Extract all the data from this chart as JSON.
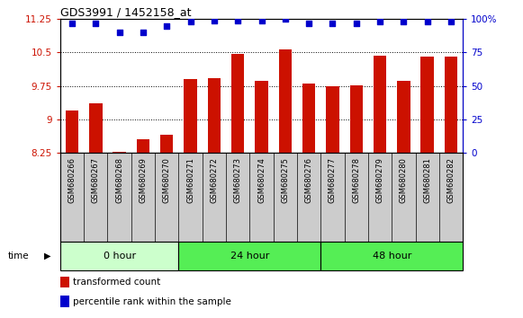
{
  "title": "GDS3991 / 1452158_at",
  "samples": [
    "GSM680266",
    "GSM680267",
    "GSM680268",
    "GSM680269",
    "GSM680270",
    "GSM680271",
    "GSM680272",
    "GSM680273",
    "GSM680274",
    "GSM680275",
    "GSM680276",
    "GSM680277",
    "GSM680278",
    "GSM680279",
    "GSM680280",
    "GSM680281",
    "GSM680282"
  ],
  "transformed_count": [
    9.2,
    9.35,
    8.27,
    8.55,
    8.65,
    9.9,
    9.92,
    10.47,
    9.87,
    10.57,
    9.8,
    9.75,
    9.77,
    10.42,
    9.87,
    10.4,
    10.4
  ],
  "percentile_rank": [
    97,
    97,
    90,
    90,
    95,
    98,
    99,
    99,
    99,
    100,
    97,
    97,
    97,
    98,
    98,
    98,
    98
  ],
  "bar_color": "#cc1100",
  "dot_color": "#0000cc",
  "ylim_left": [
    8.25,
    11.25
  ],
  "ylim_right": [
    0,
    100
  ],
  "yticks_left": [
    8.25,
    9.0,
    9.75,
    10.5,
    11.25
  ],
  "yticks_right": [
    0,
    25,
    50,
    75,
    100
  ],
  "ytick_labels_left": [
    "8.25",
    "9",
    "9.75",
    "10.5",
    "11.25"
  ],
  "ytick_labels_right": [
    "0",
    "25",
    "50",
    "75",
    "100%"
  ],
  "grid_lines": [
    9.0,
    9.75,
    10.5
  ],
  "plot_bg": "#ffffff",
  "sample_cell_bg": "#cccccc",
  "group_defs": [
    {
      "label": "0 hour",
      "start": 0,
      "end": 5,
      "color": "#ccffcc"
    },
    {
      "label": "24 hour",
      "start": 5,
      "end": 11,
      "color": "#55ee55"
    },
    {
      "label": "48 hour",
      "start": 11,
      "end": 17,
      "color": "#55ee55"
    }
  ],
  "time_label": "time",
  "legend_items": [
    {
      "color": "#cc1100",
      "label": "transformed count"
    },
    {
      "color": "#0000cc",
      "label": "percentile rank within the sample"
    }
  ]
}
